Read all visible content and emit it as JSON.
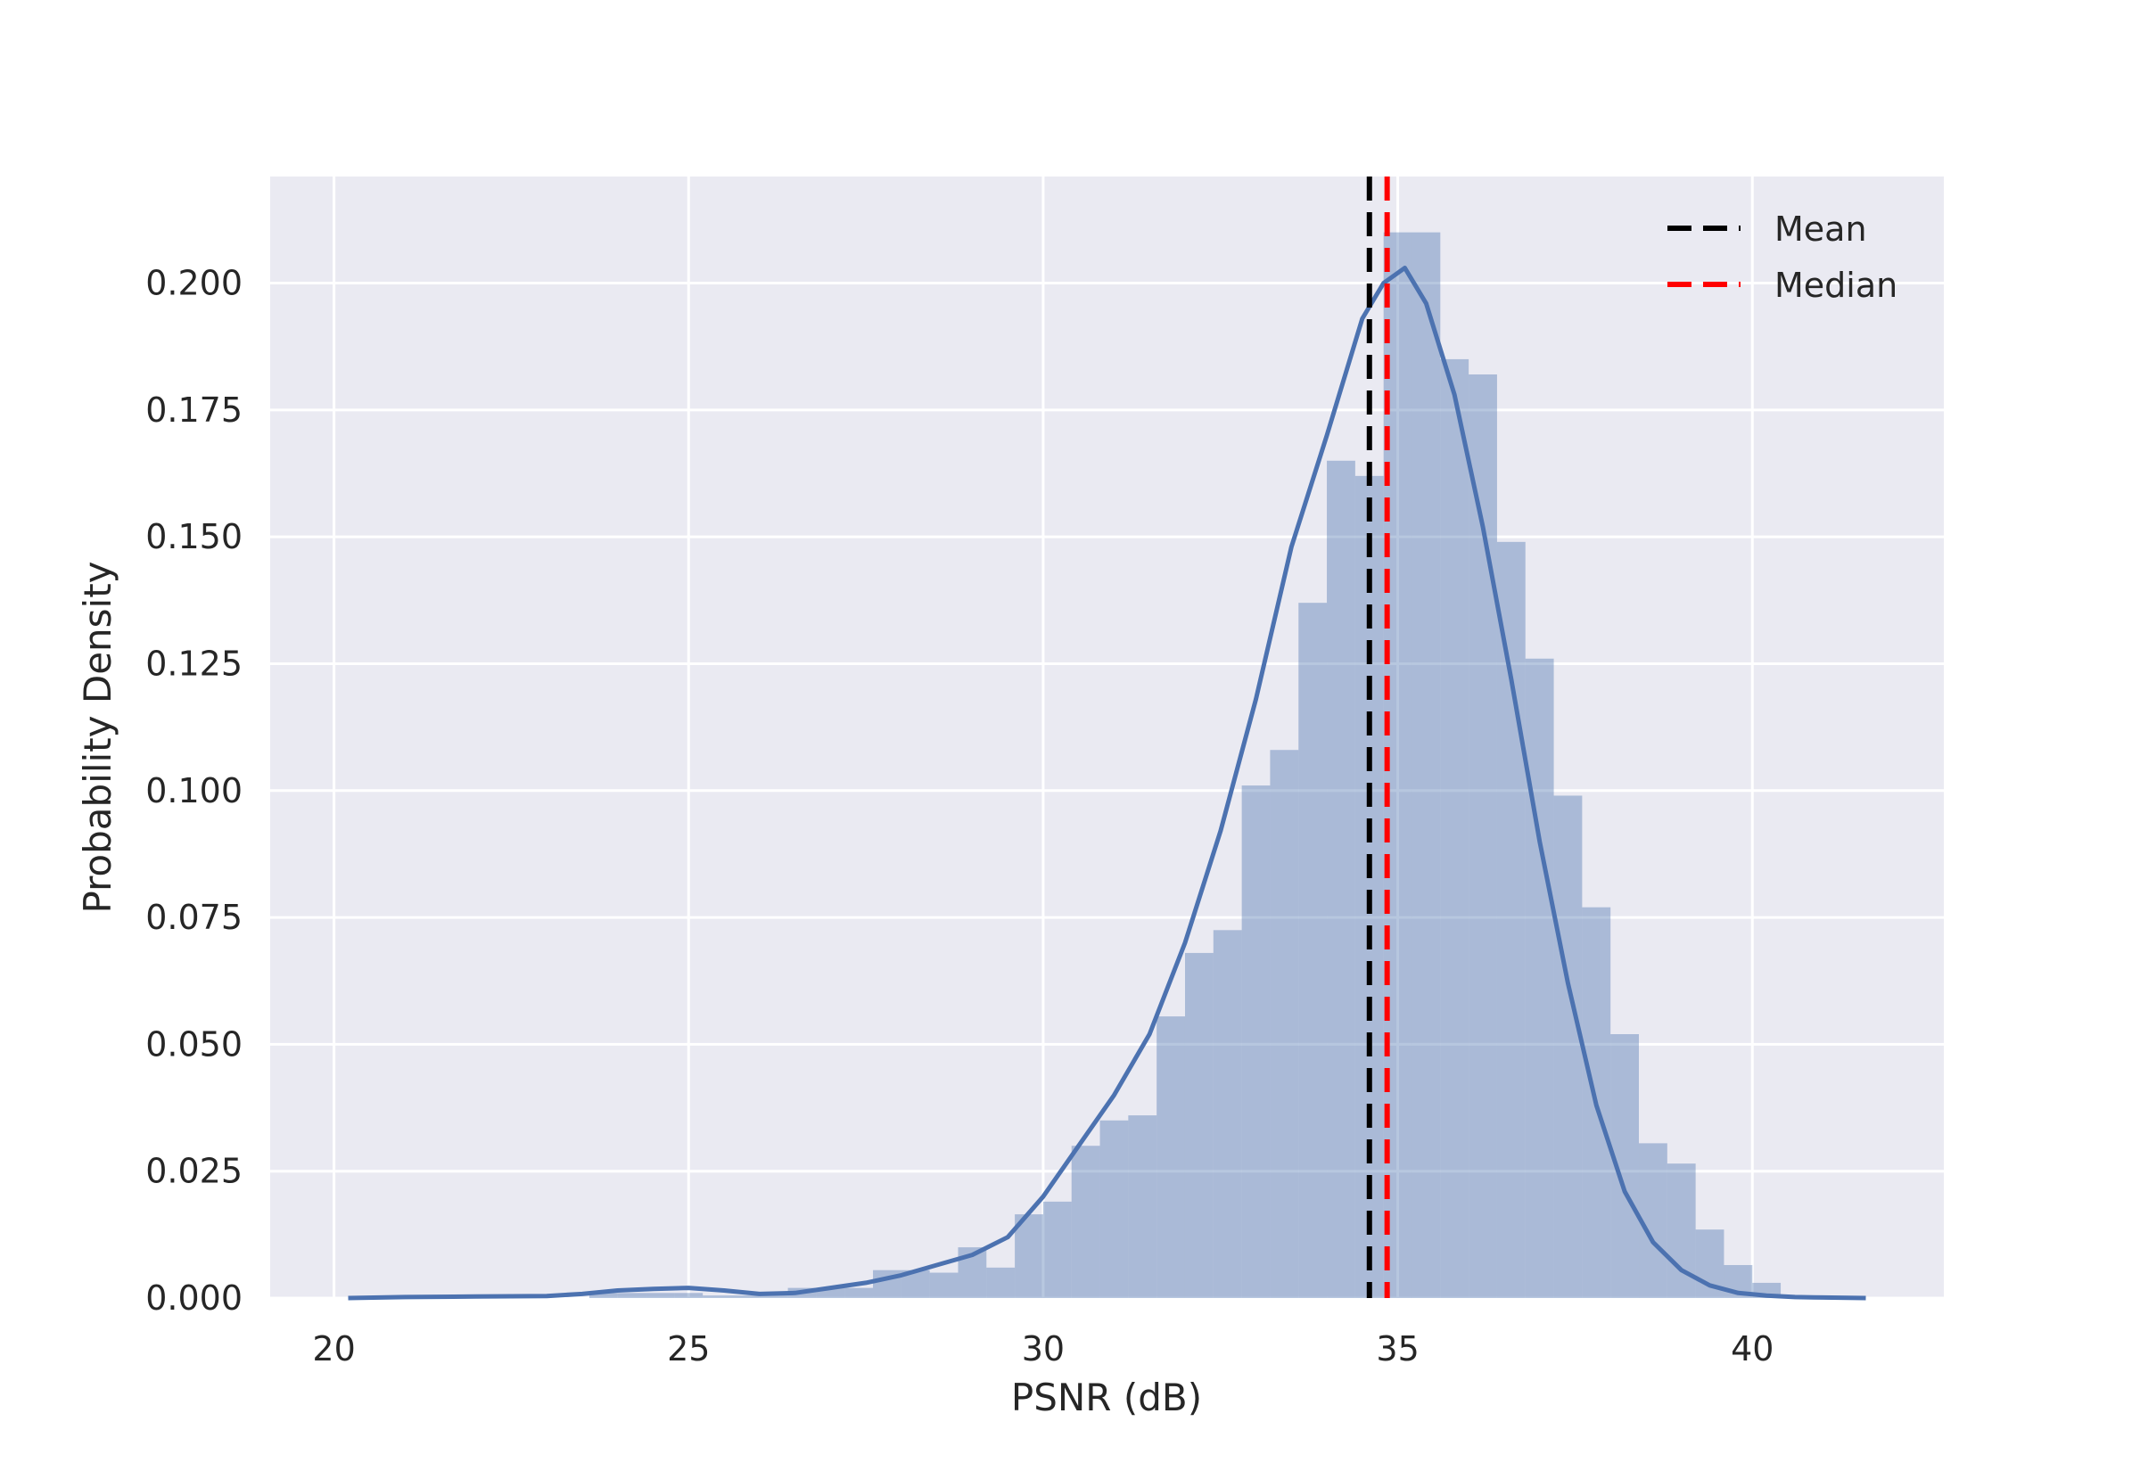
{
  "chart_data": {
    "type": "histogram",
    "title": "",
    "xlabel": "PSNR (dB)",
    "ylabel": "Probability Density",
    "xlim": [
      19.1,
      42.7
    ],
    "ylim": [
      0.0,
      0.221
    ],
    "xticks": [
      20,
      25,
      30,
      35,
      40
    ],
    "xtick_labels": [
      "20",
      "25",
      "30",
      "35",
      "40"
    ],
    "yticks": [
      0.0,
      0.025,
      0.05,
      0.075,
      0.1,
      0.125,
      0.15,
      0.175,
      0.2
    ],
    "ytick_labels": [
      "0.000",
      "0.025",
      "0.050",
      "0.075",
      "0.100",
      "0.125",
      "0.150",
      "0.175",
      "0.200"
    ],
    "grid": true,
    "legend_position": "top-right",
    "colors": {
      "background": "#eaeaf2",
      "bars": "#4c72b0",
      "kde": "#4c72b0",
      "mean": "#000000",
      "median": "#ff0000",
      "grid": "#ffffff"
    },
    "histogram": {
      "bin_edges": [
        23.6,
        24.0,
        24.4,
        24.8,
        25.2,
        25.6,
        26.0,
        26.4,
        26.8,
        27.2,
        27.6,
        28.0,
        28.4,
        28.8,
        29.2,
        29.6,
        30.0,
        30.4,
        30.8,
        31.2,
        31.6,
        32.0,
        32.4,
        32.8,
        33.2,
        33.6,
        34.0,
        34.4,
        34.8,
        35.2,
        35.6,
        36.0,
        36.4,
        36.8,
        37.2,
        37.6,
        38.0,
        38.4,
        38.8,
        39.2,
        39.6,
        40.0,
        40.4
      ],
      "densities": [
        0.001,
        0.001,
        0.001,
        0.001,
        0.0005,
        0.0005,
        0.001,
        0.002,
        0.002,
        0.002,
        0.0055,
        0.0055,
        0.005,
        0.01,
        0.006,
        0.0165,
        0.019,
        0.03,
        0.035,
        0.036,
        0.0555,
        0.068,
        0.0725,
        0.101,
        0.108,
        0.137,
        0.165,
        0.162,
        0.21,
        0.21,
        0.185,
        0.182,
        0.149,
        0.126,
        0.099,
        0.077,
        0.052,
        0.0305,
        0.0265,
        0.0135,
        0.0065,
        0.003
      ]
    },
    "kde": {
      "x": [
        20.2,
        21.0,
        22.0,
        23.0,
        23.5,
        24.0,
        24.5,
        25.0,
        25.5,
        26.0,
        26.5,
        27.0,
        27.5,
        28.0,
        28.5,
        29.0,
        29.5,
        30.0,
        30.5,
        31.0,
        31.5,
        32.0,
        32.5,
        33.0,
        33.5,
        34.0,
        34.5,
        34.8,
        35.1,
        35.4,
        35.8,
        36.2,
        36.6,
        37.0,
        37.4,
        37.8,
        38.2,
        38.6,
        39.0,
        39.4,
        39.8,
        40.2,
        40.6,
        41.0,
        41.6
      ],
      "y": [
        0.0,
        0.0002,
        0.0003,
        0.0004,
        0.0008,
        0.0015,
        0.0018,
        0.002,
        0.0015,
        0.0008,
        0.001,
        0.002,
        0.003,
        0.0045,
        0.0065,
        0.0085,
        0.012,
        0.02,
        0.03,
        0.04,
        0.052,
        0.07,
        0.092,
        0.118,
        0.148,
        0.17,
        0.193,
        0.2,
        0.203,
        0.196,
        0.178,
        0.152,
        0.122,
        0.09,
        0.062,
        0.038,
        0.021,
        0.011,
        0.0055,
        0.0025,
        0.001,
        0.0005,
        0.0002,
        0.0001,
        0.0
      ]
    },
    "lines": [
      {
        "name": "Mean",
        "x": 34.6,
        "style": "dashed",
        "color": "#000000"
      },
      {
        "name": "Median",
        "x": 34.85,
        "style": "dashed",
        "color": "#ff0000"
      }
    ]
  }
}
